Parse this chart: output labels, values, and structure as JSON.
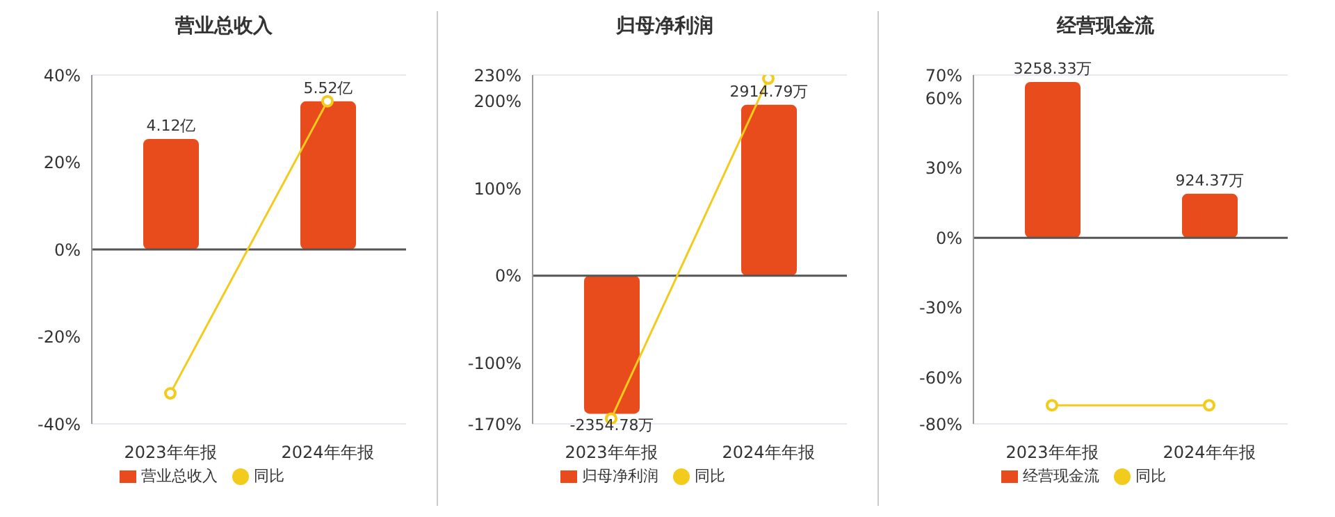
{
  "chart_data": [
    {
      "type": "bar",
      "title": "营业总收入",
      "categories": [
        "2023年年报",
        "2024年年报"
      ],
      "series": [
        {
          "name": "营业总收入",
          "axis": "y2",
          "color": "#e84c1c",
          "values": [
            4.12,
            5.52
          ],
          "value_labels": [
            "4.12亿",
            "5.52亿"
          ]
        },
        {
          "name": "同比",
          "type": "line",
          "color": "#f2cb1d",
          "values": [
            -33,
            34
          ]
        }
      ],
      "ylim": [
        -40,
        40
      ],
      "yticks": [
        {
          "value": -40,
          "label": "-40%"
        },
        {
          "value": -20,
          "label": "-20%"
        },
        {
          "value": 0,
          "label": "0%"
        },
        {
          "value": 20,
          "label": "20%"
        },
        {
          "value": 40,
          "label": "40%"
        }
      ],
      "y2lim": [
        -6.5,
        6.5
      ],
      "grid": "y",
      "legend": "bottom",
      "marker": "circle"
    },
    {
      "type": "bar",
      "title": "归母净利润",
      "categories": [
        "2023年年报",
        "2024年年报"
      ],
      "series": [
        {
          "name": "归母净利润",
          "axis": "y2",
          "color": "#e84c1c",
          "values": [
            -2354.78,
            2914.79
          ],
          "value_labels": [
            "-2354.78万",
            "2914.79万"
          ]
        },
        {
          "name": "同比",
          "type": "line",
          "color": "#f2cb1d",
          "values": [
            -164,
            226
          ]
        }
      ],
      "ylim": [
        -170,
        230
      ],
      "yticks": [
        {
          "value": -170,
          "label": "-170%"
        },
        {
          "value": -100,
          "label": "-100%"
        },
        {
          "value": 0,
          "label": "0%"
        },
        {
          "value": 100,
          "label": "100%"
        },
        {
          "value": 200,
          "label": "200%"
        },
        {
          "value": 230,
          "label": "230%"
        }
      ],
      "y2lim": [
        -2528,
        3420
      ],
      "grid": "y",
      "legend": "bottom",
      "marker": "circle"
    },
    {
      "type": "bar",
      "title": "经营现金流",
      "categories": [
        "2023年年报",
        "2024年年报"
      ],
      "series": [
        {
          "name": "经营现金流",
          "axis": "y2",
          "color": "#e84c1c",
          "values": [
            3258.33,
            924.37
          ],
          "value_labels": [
            "3258.33万",
            "924.37万"
          ]
        },
        {
          "name": "同比",
          "type": "line",
          "color": "#f2cb1d",
          "values": [
            -72,
            -72
          ]
        }
      ],
      "ylim": [
        -80,
        70
      ],
      "yticks": [
        {
          "value": -80,
          "label": "-80%"
        },
        {
          "value": -60,
          "label": "-60%"
        },
        {
          "value": -30,
          "label": "-30%"
        },
        {
          "value": 0,
          "label": "0%"
        },
        {
          "value": 30,
          "label": "30%"
        },
        {
          "value": 60,
          "label": "60%"
        },
        {
          "value": 70,
          "label": "70%"
        }
      ],
      "y2lim": [
        -3890,
        3404
      ],
      "grid": "y",
      "legend": "bottom",
      "marker": "circle"
    }
  ]
}
